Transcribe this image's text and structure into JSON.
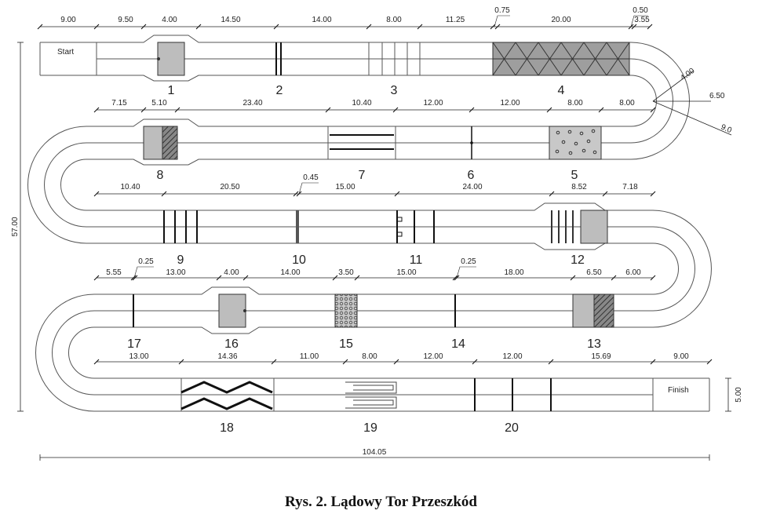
{
  "figure": {
    "caption": "Rys. 2. Lądowy Tor Przeszkód",
    "start_label": "Start",
    "finish_label": "Finish",
    "overall_height": "57.00",
    "overall_width": "104.05",
    "finish_width": "5.00",
    "turn_dims": [
      "4.00",
      "6.50",
      "9.0"
    ]
  },
  "rows": [
    {
      "dims": [
        "9.00",
        "9.50",
        "4.00",
        "14.50",
        "14.00",
        "8.00",
        "11.25",
        "0.75",
        "20.00",
        "0.50",
        "3.55"
      ],
      "obstacles": [
        "1",
        "2",
        "3",
        "4"
      ]
    },
    {
      "dims": [
        "7.15",
        "5.10",
        "23.40",
        "10.40",
        "12.00",
        "12.00",
        "8.00",
        "8.00"
      ],
      "obstacles": [
        "8",
        "7",
        "6",
        "5"
      ]
    },
    {
      "dims": [
        "10.40",
        "20.50",
        "0.45",
        "15.00",
        "24.00",
        "8.52",
        "7.18"
      ],
      "obstacles": [
        "9",
        "10",
        "11",
        "12"
      ]
    },
    {
      "dims": [
        "5.55",
        "0.25",
        "13.00",
        "4.00",
        "14.00",
        "3.50",
        "15.00",
        "0.25",
        "18.00",
        "6.50",
        "6.00"
      ],
      "obstacles": [
        "17",
        "16",
        "15",
        "14",
        "13"
      ]
    },
    {
      "dims": [
        "13.00",
        "14.36",
        "11.00",
        "8.00",
        "12.00",
        "12.00",
        "15.69",
        "9.00"
      ],
      "obstacles": [
        "18",
        "19",
        "20"
      ]
    }
  ]
}
